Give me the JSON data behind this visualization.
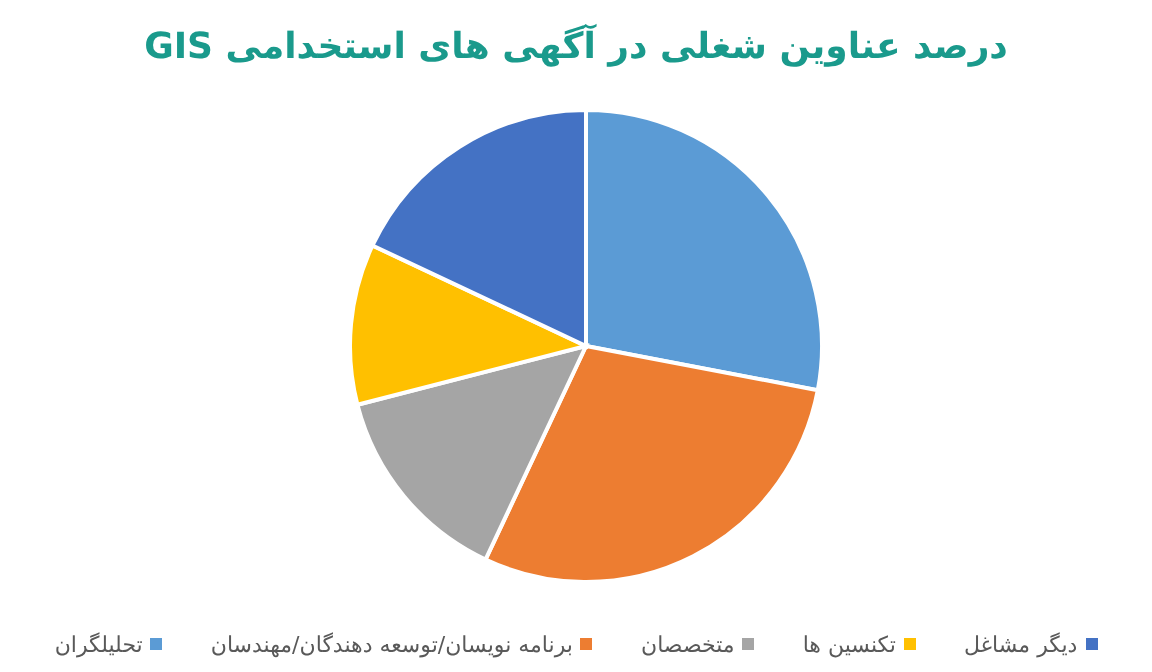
{
  "chart_data": {
    "type": "pie",
    "title": "درصد عناوین شغلی در آگهی های استخدامی GIS",
    "categories": [
      "تحلیلگران",
      "برنامه نویسان/توسعه دهندگان/مهندسان",
      "متخصصان",
      "تکنسین ها",
      "دیگر مشاغل"
    ],
    "values": [
      28,
      29,
      14,
      11,
      18
    ],
    "colors": [
      "#5b9bd5",
      "#ed7d31",
      "#a5a5a5",
      "#ffc000",
      "#4472c4"
    ],
    "legend": "bottom"
  }
}
